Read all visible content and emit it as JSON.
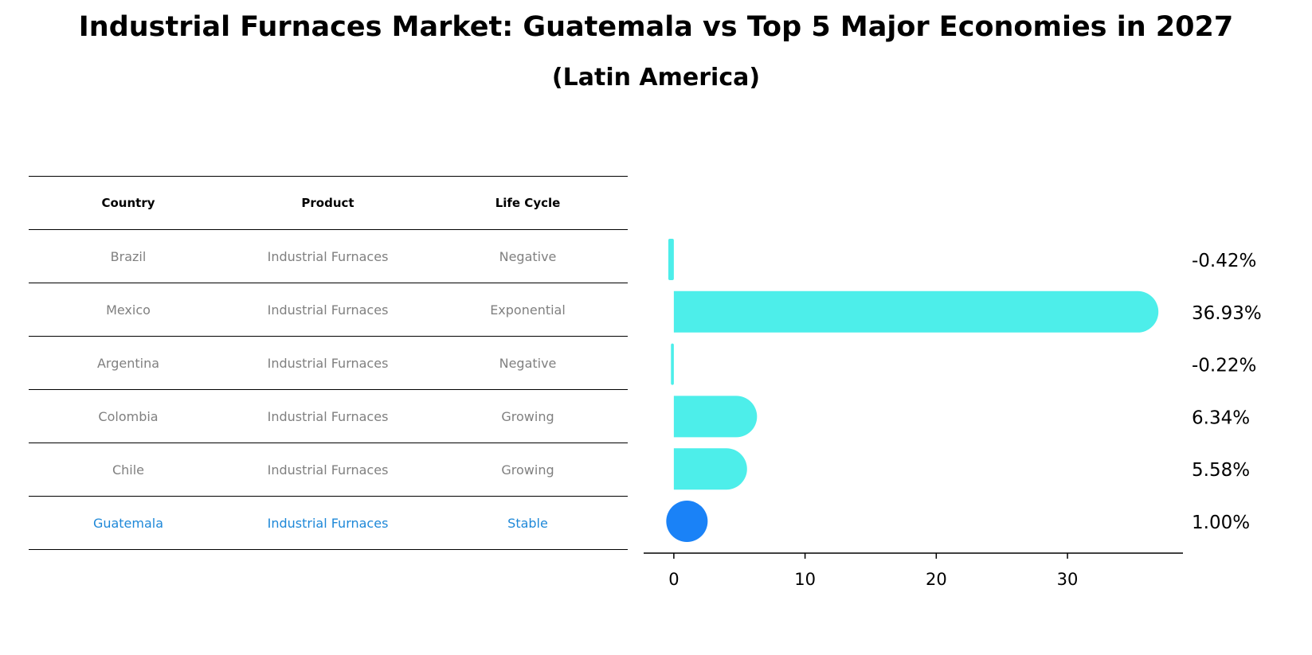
{
  "title": "Industrial Furnaces Market: Guatemala vs Top 5 Major Economies in 2027",
  "subtitle": "(Latin America)",
  "table": {
    "headers": [
      "Country",
      "Product",
      "Life Cycle"
    ],
    "rows": [
      {
        "country": "Brazil",
        "product": "Industrial Furnaces",
        "life_cycle": "Negative",
        "highlight": false
      },
      {
        "country": "Mexico",
        "product": "Industrial Furnaces",
        "life_cycle": "Exponential",
        "highlight": false
      },
      {
        "country": "Argentina",
        "product": "Industrial Furnaces",
        "life_cycle": "Negative",
        "highlight": false
      },
      {
        "country": "Colombia",
        "product": "Industrial Furnaces",
        "life_cycle": "Growing",
        "highlight": false
      },
      {
        "country": "Chile",
        "product": "Industrial Furnaces",
        "life_cycle": "Growing",
        "highlight": false
      },
      {
        "country": "Guatemala",
        "product": "Industrial Furnaces",
        "life_cycle": "Stable",
        "highlight": true
      }
    ]
  },
  "chart_data": {
    "type": "bar",
    "orientation": "horizontal",
    "categories": [
      "Brazil",
      "Mexico",
      "Argentina",
      "Colombia",
      "Chile",
      "Guatemala"
    ],
    "values": [
      -0.42,
      36.93,
      -0.22,
      6.34,
      5.58,
      1.0
    ],
    "value_labels": [
      "-0.42%",
      "36.93%",
      "-0.22%",
      "6.34%",
      "5.58%",
      "1.00%"
    ],
    "xlim": [
      -2.3,
      38.8
    ],
    "xticks": [
      0,
      10,
      20,
      30
    ],
    "xlabel": "",
    "ylabel": "",
    "grid": false,
    "colors": {
      "bar": "#4deeea",
      "highlight": "#1a82f7"
    }
  }
}
